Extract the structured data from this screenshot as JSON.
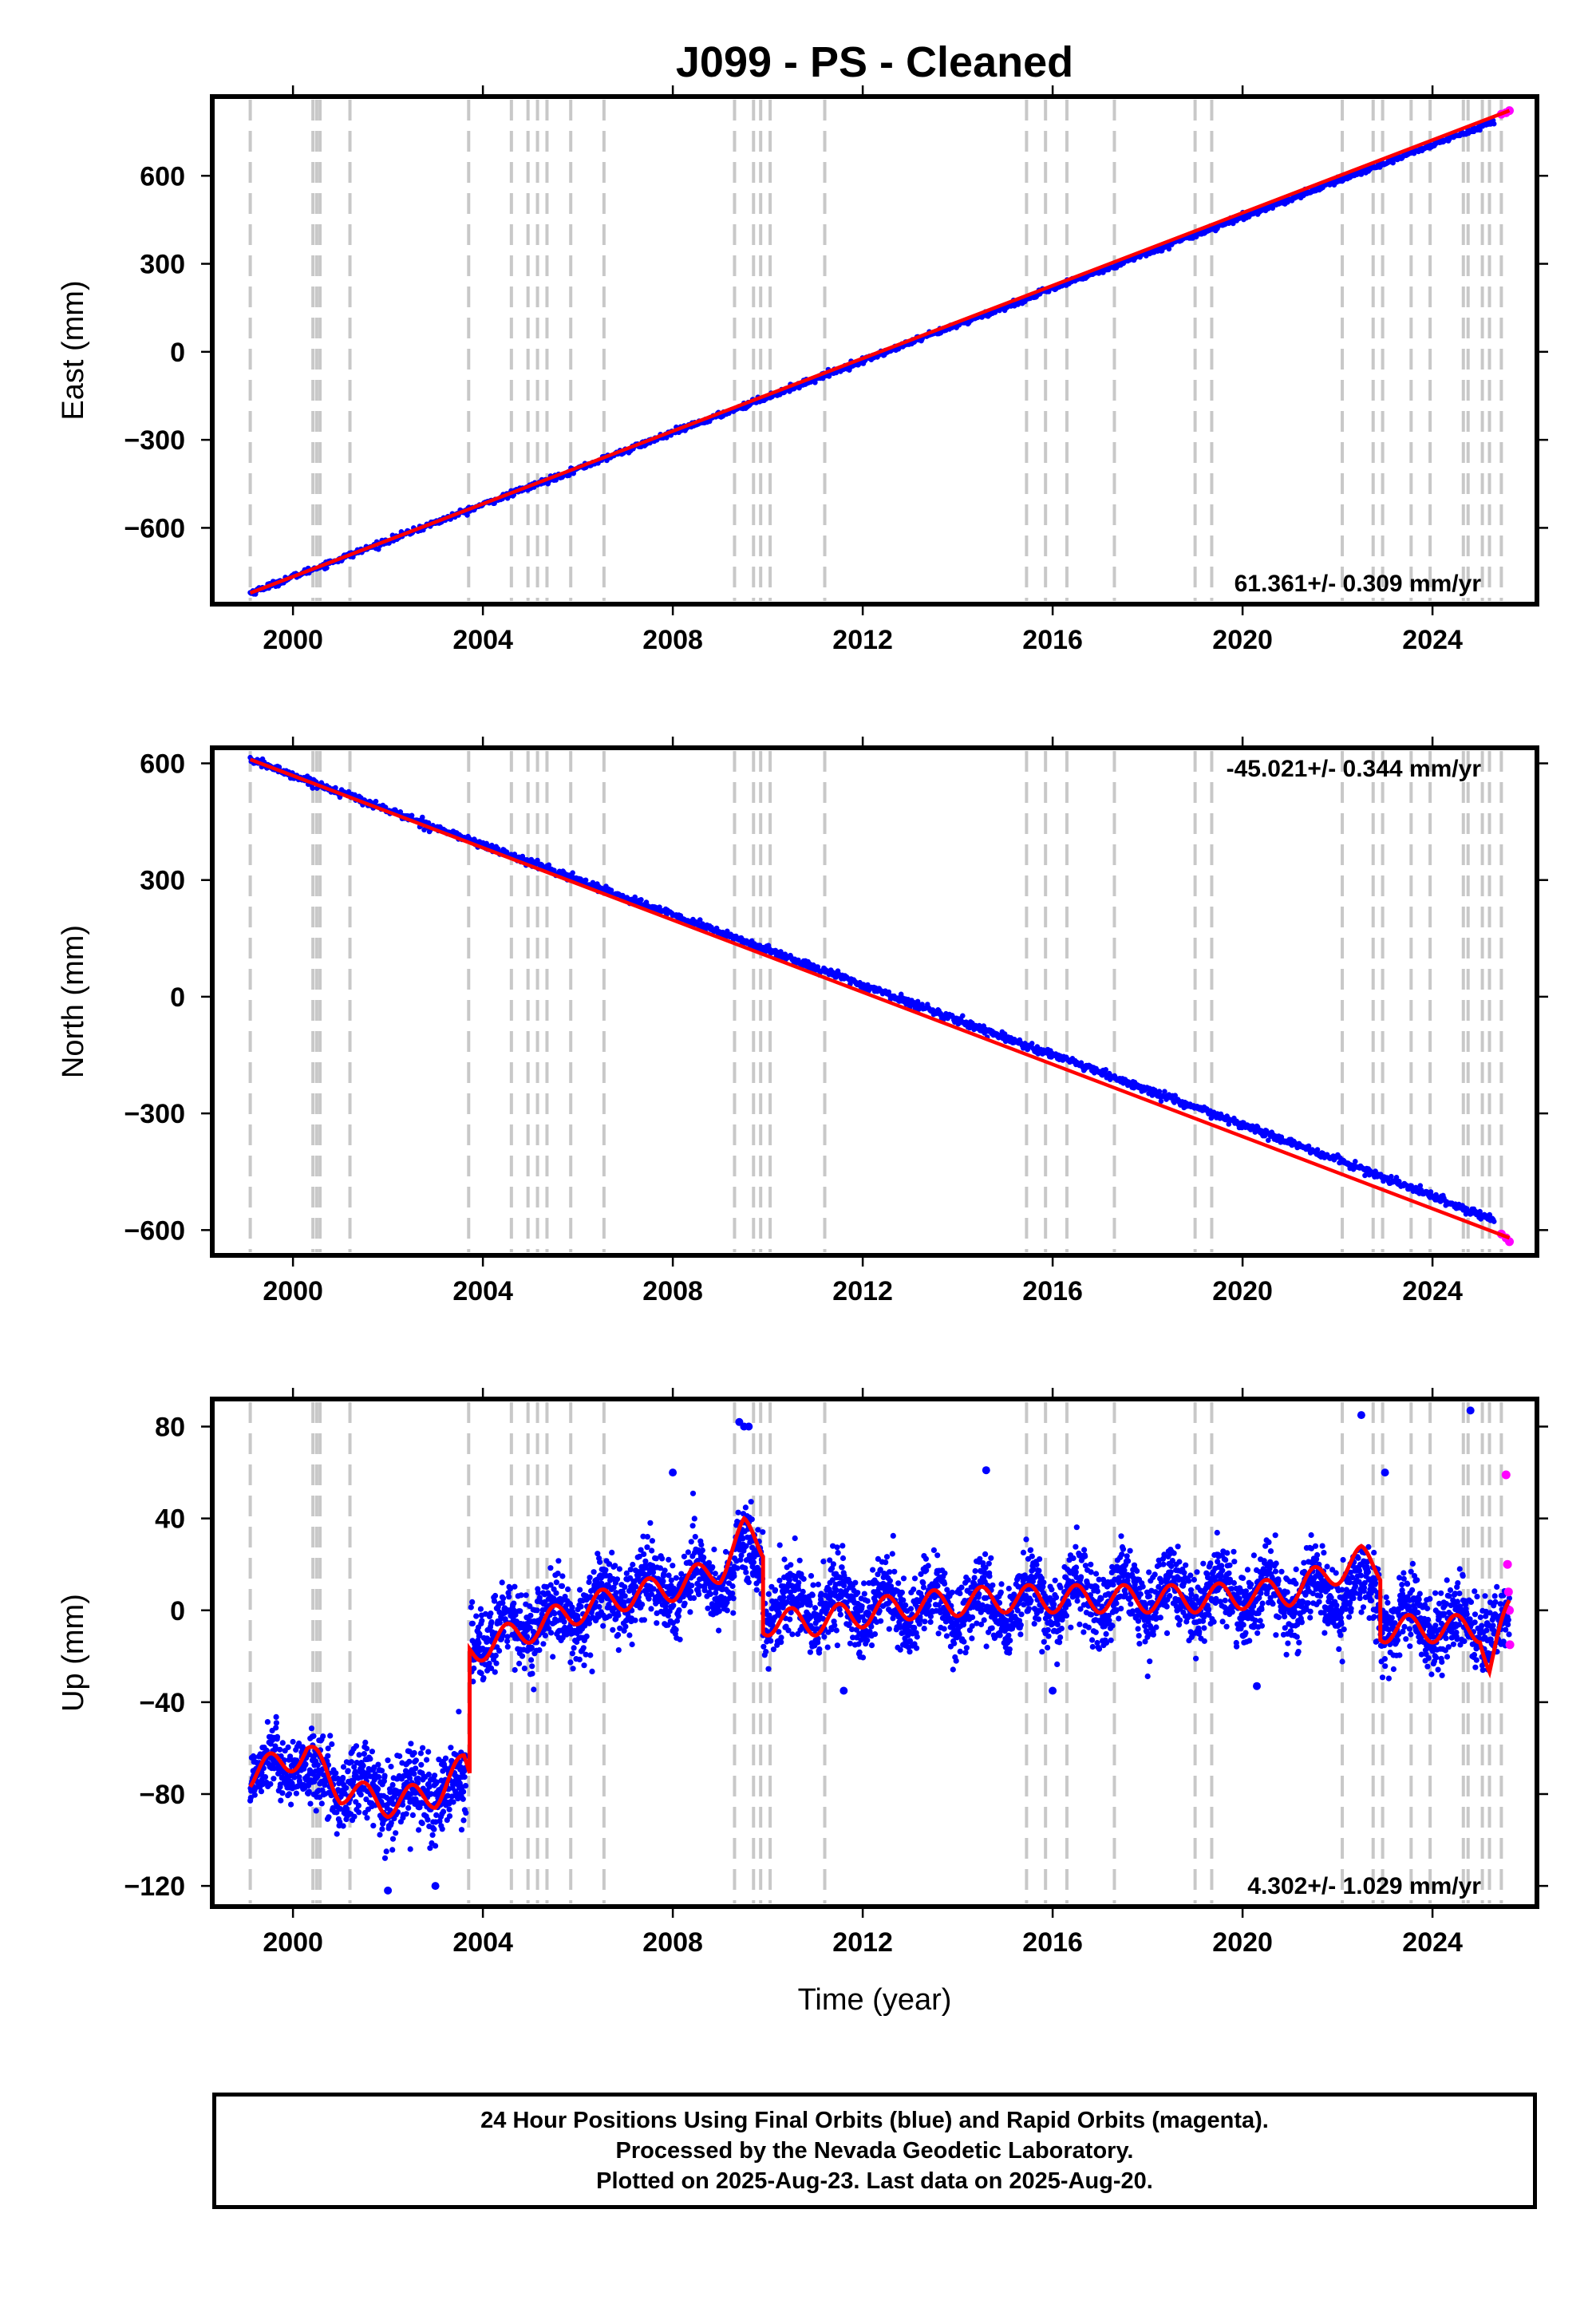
{
  "title": "J099  - PS - Cleaned",
  "x_axis_label": "Time (year)",
  "colors": {
    "final_orbits": "#0000ff",
    "rapid_orbits": "#ff00ff",
    "model": "#ff0000",
    "event_lines": "#c8c8c8"
  },
  "chart_data": [
    {
      "type": "scatter",
      "component": "East",
      "ylabel": "East (mm)",
      "xlim": [
        1998.3,
        2026.2
      ],
      "ylim": [
        -860,
        870
      ],
      "xticks": [
        2000,
        2004,
        2008,
        2012,
        2016,
        2020,
        2024
      ],
      "xtick_labels": [
        "2000",
        "2004",
        "2008",
        "2012",
        "2016",
        "2020",
        "2024"
      ],
      "yticks": [
        -600,
        -300,
        0,
        300,
        600
      ],
      "ytick_labels": [
        "−600",
        "−300",
        "0",
        "300",
        "600"
      ],
      "rate_text": "61.361+/- 0.309 mm/yr",
      "rate_position": "bottom-right",
      "series": [
        {
          "name": "Final Orbits",
          "color": "#0000ff",
          "x": [
            1999.1,
            2001,
            2003,
            2005,
            2007,
            2009,
            2011,
            2013,
            2015,
            2017,
            2019,
            2021,
            2023,
            2025.3
          ],
          "y": [
            -822,
            -705,
            -582,
            -460,
            -337,
            -215,
            -92,
            31,
            153,
            276,
            399,
            521,
            644,
            785
          ]
        },
        {
          "name": "Rapid Orbits",
          "color": "#ff00ff",
          "x": [
            2025.45,
            2025.55,
            2025.62
          ],
          "y": [
            810,
            815,
            822
          ]
        },
        {
          "name": "Model",
          "color": "#ff0000",
          "x": [
            1999.1,
            2025.62
          ],
          "y": [
            -822,
            822
          ]
        }
      ]
    },
    {
      "type": "scatter",
      "component": "North",
      "ylabel": "North (mm)",
      "xlim": [
        1998.3,
        2026.2
      ],
      "ylim": [
        -665,
        640
      ],
      "xticks": [
        2000,
        2004,
        2008,
        2012,
        2016,
        2020,
        2024
      ],
      "xtick_labels": [
        "2000",
        "2004",
        "2008",
        "2012",
        "2016",
        "2020",
        "2024"
      ],
      "yticks": [
        -600,
        -300,
        0,
        300,
        600
      ],
      "ytick_labels": [
        "−600",
        "−300",
        "0",
        "300",
        "600"
      ],
      "rate_text": "-45.021+/- 0.344 mm/yr",
      "rate_position": "top-right",
      "series": [
        {
          "name": "Final Orbits",
          "color": "#0000ff",
          "x": [
            1999.1,
            2001,
            2003,
            2005,
            2007,
            2009,
            2011,
            2013,
            2015,
            2017,
            2019,
            2021,
            2023,
            2025.3
          ],
          "y": [
            610,
            525,
            435,
            345,
            255,
            165,
            75,
            -15,
            -105,
            -195,
            -285,
            -375,
            -465,
            -575
          ]
        },
        {
          "name": "Rapid Orbits",
          "color": "#ff00ff",
          "x": [
            2025.45,
            2025.55,
            2025.62
          ],
          "y": [
            -610,
            -620,
            -630
          ]
        },
        {
          "name": "Model",
          "color": "#ff0000",
          "x": [
            1999.1,
            2025.62
          ],
          "y": [
            610,
            -620
          ]
        }
      ]
    },
    {
      "type": "scatter",
      "component": "Up",
      "ylabel": "Up (mm)",
      "xlim": [
        1998.3,
        2026.2
      ],
      "ylim": [
        -129,
        92
      ],
      "xticks": [
        2000,
        2004,
        2008,
        2012,
        2016,
        2020,
        2024
      ],
      "xtick_labels": [
        "2000",
        "2004",
        "2008",
        "2012",
        "2016",
        "2020",
        "2024"
      ],
      "yticks": [
        -120,
        -80,
        -40,
        0,
        40,
        80
      ],
      "ytick_labels": [
        "−120",
        "−80",
        "−40",
        "0",
        "40",
        "80"
      ],
      "rate_text": "4.302+/- 1.029 mm/yr",
      "rate_position": "bottom-right",
      "segments": [
        {
          "x": [
            1999.1,
            2000.2
          ],
          "mean": [
            -70,
            -66
          ],
          "amp": 6,
          "sd": 7
        },
        {
          "x": [
            2000.2,
            2001.5
          ],
          "mean": [
            -72,
            -78
          ],
          "amp": 5,
          "sd": 8
        },
        {
          "x": [
            2001.5,
            2003.65
          ],
          "mean": [
            -80,
            -78
          ],
          "amp": 5,
          "sd": 9
        },
        {
          "x": [
            2003.75,
            2006.5
          ],
          "mean": [
            -12,
            0
          ],
          "amp": 6,
          "sd": 8
        },
        {
          "x": [
            2006.5,
            2009.3
          ],
          "mean": [
            5,
            15
          ],
          "amp": 7,
          "sd": 8
        },
        {
          "x": [
            2009.3,
            2009.9
          ],
          "mean": [
            25,
            25
          ],
          "amp": 5,
          "sd": 8
        },
        {
          "x": [
            2009.9,
            2015.5
          ],
          "mean": [
            2,
            2
          ],
          "amp": 8,
          "sd": 8
        },
        {
          "x": [
            2015.5,
            2022.9
          ],
          "mean": [
            5,
            8
          ],
          "amp": 8,
          "sd": 8
        },
        {
          "x": [
            2022.9,
            2025.62
          ],
          "mean": [
            -3,
            -10
          ],
          "amp": 7,
          "sd": 8
        }
      ],
      "outliers": {
        "x": [
          2008.0,
          2009.4,
          2009.5,
          2009.6,
          2014.6,
          2022.5,
          2023.0,
          2024.8,
          2002.0,
          2003.0,
          2011.6,
          2016.0,
          2020.3
        ],
        "y": [
          60,
          82,
          80,
          80,
          61,
          85,
          60,
          87,
          -122,
          -120,
          -35,
          -35,
          -33
        ]
      },
      "rapid_points": {
        "x": [
          2025.55,
          2025.58,
          2025.6,
          2025.62,
          2025.63
        ],
        "y": [
          59,
          20,
          8,
          0,
          -15
        ]
      },
      "model_knots": {
        "x": [
          1999.1,
          2000.0,
          2000.3,
          2001.0,
          2002.0,
          2003.0,
          2003.6,
          2003.72,
          2003.72,
          2005.0,
          2006.0,
          2007.0,
          2008.0,
          2009.0,
          2009.5,
          2009.9,
          2009.9,
          2011.0,
          2013.0,
          2015.0,
          2015.6,
          2017.0,
          2019.0,
          2021.0,
          2022.5,
          2022.9,
          2022.9,
          2024.0,
          2025.0,
          2025.2,
          2025.62
        ],
        "y": [
          -72,
          -64,
          -62,
          -78,
          -84,
          -80,
          -68,
          -72,
          -18,
          -8,
          0,
          6,
          10,
          18,
          34,
          28,
          -5,
          -5,
          2,
          5,
          5,
          5,
          5,
          8,
          22,
          18,
          -8,
          -8,
          -8,
          -25,
          0
        ]
      }
    }
  ],
  "event_years": [
    1999.1,
    2000.42,
    2000.5,
    2000.57,
    2001.2,
    2003.7,
    2004.6,
    2004.95,
    2005.15,
    2005.35,
    2005.85,
    2006.55,
    2009.3,
    2009.7,
    2009.85,
    2010.05,
    2011.2,
    2015.45,
    2015.85,
    2016.3,
    2017.3,
    2019.0,
    2019.35,
    2022.1,
    2022.75,
    2022.95,
    2023.55,
    2023.95,
    2024.65,
    2024.75,
    2025.05,
    2025.2,
    2025.45
  ],
  "footer": {
    "line1": "24 Hour Positions Using Final Orbits (blue) and Rapid Orbits (magenta).",
    "line2": "Processed by the Nevada Geodetic Laboratory.",
    "line3": "Plotted on 2025-Aug-23. Last data on 2025-Aug-20."
  }
}
